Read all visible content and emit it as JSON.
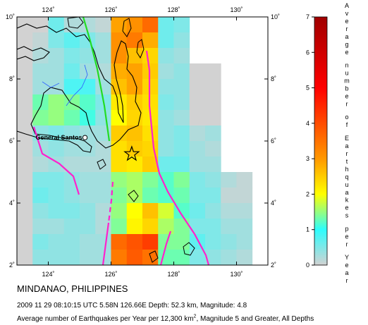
{
  "map": {
    "region": "MINDANAO, PHILIPPINES",
    "lon_min": 123,
    "lon_max": 131,
    "lat_min": 2,
    "lat_max": 10,
    "lon_ticks": [
      "124˚",
      "126˚",
      "128˚",
      "130˚"
    ],
    "lat_ticks": [
      "2˚",
      "4˚",
      "6˚",
      "8˚",
      "10˚"
    ],
    "city": {
      "name": "General Santos",
      "lon": 125.17,
      "lat": 6.11
    },
    "epicenter": {
      "lon": 126.66,
      "lat": 5.58
    },
    "colors": {
      "land_edge": "#000000",
      "fault": "#ff22cc",
      "fault_green": "#22dd22",
      "river": "#3366ff",
      "no_data": "#d2d2d2"
    }
  },
  "grid_rates": [
    [
      0.0,
      0.0,
      0.6,
      0.2,
      0.2,
      0.1,
      2.9,
      3.1,
      3.6,
      0.6,
      0.5,
      null,
      null,
      null,
      null,
      null
    ],
    [
      0.0,
      0.1,
      0.5,
      0.7,
      0.5,
      0.3,
      3.1,
      3.4,
      2.8,
      0.6,
      0.4,
      null,
      null,
      null,
      null,
      null
    ],
    [
      0.0,
      0.2,
      0.3,
      0.5,
      0.4,
      0.3,
      3.1,
      2.6,
      2.4,
      0.4,
      0.3,
      null,
      null,
      null,
      null,
      null
    ],
    [
      0.0,
      0.3,
      0.3,
      0.6,
      0.3,
      0.2,
      2.8,
      2.9,
      2.5,
      0.3,
      0.4,
      0.0,
      0.0,
      null,
      null,
      null
    ],
    [
      0.0,
      0.3,
      0.3,
      0.8,
      0.8,
      0.3,
      2.6,
      2.9,
      2.4,
      0.4,
      0.4,
      0.0,
      0.0,
      null,
      null,
      null
    ],
    [
      0.0,
      1.3,
      1.5,
      1.4,
      1.2,
      0.5,
      2.2,
      2.5,
      2.3,
      0.5,
      0.4,
      0.0,
      0.0,
      null,
      null,
      null
    ],
    [
      0.0,
      1.4,
      1.5,
      1.3,
      1.1,
      0.4,
      2.0,
      2.4,
      2.2,
      0.4,
      0.3,
      0.0,
      0.0,
      null,
      null,
      null
    ],
    [
      0.0,
      0.4,
      0.5,
      0.4,
      0.3,
      0.3,
      2.5,
      2.6,
      2.3,
      0.4,
      0.5,
      0.2,
      0.3,
      null,
      null,
      null
    ],
    [
      0.0,
      0.3,
      0.4,
      0.3,
      0.3,
      0.2,
      2.3,
      2.5,
      2.4,
      0.4,
      0.5,
      0.3,
      0.2,
      null,
      null,
      null
    ],
    [
      0.0,
      0.2,
      0.3,
      0.2,
      0.2,
      0.2,
      2.3,
      2.2,
      2.5,
      0.6,
      0.6,
      0.3,
      0.3,
      null,
      null,
      null
    ],
    [
      0.0,
      0.5,
      0.5,
      0.4,
      0.3,
      0.3,
      1.5,
      1.6,
      1.4,
      1.2,
      1.4,
      0.5,
      0.4,
      0.2,
      0.1,
      null
    ],
    [
      0.0,
      0.6,
      0.5,
      0.4,
      0.3,
      0.3,
      1.4,
      1.6,
      1.3,
      1.2,
      1.3,
      0.5,
      0.5,
      0.1,
      0.1,
      null
    ],
    [
      0.0,
      0.4,
      0.5,
      0.5,
      0.4,
      0.2,
      1.5,
      2.0,
      2.6,
      1.8,
      1.2,
      0.6,
      0.4,
      0.2,
      0.2,
      null
    ],
    [
      0.0,
      0.3,
      0.3,
      0.4,
      0.4,
      0.2,
      1.4,
      2.1,
      2.4,
      1.6,
      1.4,
      0.5,
      0.5,
      0.3,
      0.3,
      null
    ],
    [
      0.0,
      0.5,
      0.4,
      0.4,
      0.3,
      0.3,
      3.6,
      3.9,
      4.2,
      1.4,
      1.4,
      0.7,
      0.5,
      0.4,
      0.3,
      null
    ],
    [
      0.0,
      0.4,
      0.4,
      0.4,
      0.3,
      0.3,
      3.4,
      3.8,
      3.5,
      1.3,
      1.3,
      0.5,
      0.4,
      0.3,
      0.2,
      null
    ]
  ],
  "colorbar": {
    "title": "Average number of Earthquakes per Year",
    "ticks": [
      "0",
      "1",
      "2",
      "3",
      "4",
      "5",
      "6",
      "7"
    ],
    "min": 0,
    "max": 7
  },
  "caption": {
    "title": "MINDANAO, PHILIPPINES",
    "event": "2009 11 29 08:10:15 UTC 5.58N 126.66E Depth: 52.3 km, Magnitude: 4.8",
    "note_prefix": "Average number of Earthquakes per Year per 12,300 km",
    "note_sup": "2",
    "note_suffix": ", Magnitude 5 and Greater, All Depths"
  }
}
